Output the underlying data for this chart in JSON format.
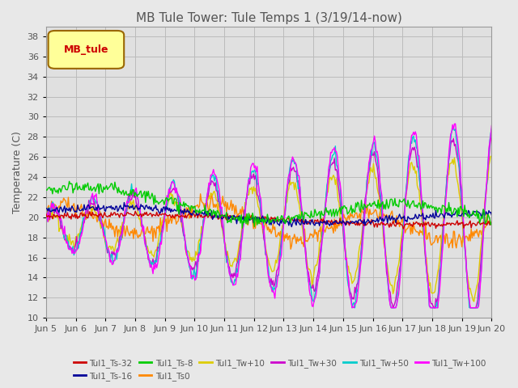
{
  "title": "MB Tule Tower: Tule Temps 1 (3/19/14-now)",
  "ylabel": "Temperature (C)",
  "ylim": [
    10,
    39
  ],
  "yticks": [
    10,
    12,
    14,
    16,
    18,
    20,
    22,
    24,
    26,
    28,
    30,
    32,
    34,
    36,
    38
  ],
  "x_labels": [
    "Jun 5",
    "Jun 6",
    "Jun 7",
    "Jun 8",
    "Jun 9",
    "Jun 10",
    "Jun 11",
    "Jun 12",
    "Jun 13",
    "Jun 14",
    "Jun 15",
    "Jun 16",
    "Jun 17",
    "Jun 18",
    "Jun 19",
    "Jun 20"
  ],
  "num_points": 480,
  "series_colors": [
    "#cc0000",
    "#000099",
    "#00cc00",
    "#ff8800",
    "#ddcc00",
    "#cc00cc",
    "#00cccc",
    "#ff00ff"
  ],
  "series_labels": [
    "Tul1_Ts-32",
    "Tul1_Ts-16",
    "Tul1_Ts-8",
    "Tul1_Ts0",
    "Tul1_Tw+10",
    "Tul1_Tw+30",
    "Tul1_Tw+50",
    "Tul1_Tw+100"
  ],
  "background_color": "#e8e8e8",
  "plot_bg_color": "#e0e0e0",
  "grid_color": "#cccccc",
  "legend_box_label": "MB_tule",
  "legend_box_facecolor": "#ffff99",
  "legend_box_edgecolor": "#996600",
  "legend_text_color": "#cc0000",
  "tick_color": "#555555",
  "title_color": "#555555",
  "figsize": [
    6.4,
    4.8
  ],
  "dpi": 100
}
